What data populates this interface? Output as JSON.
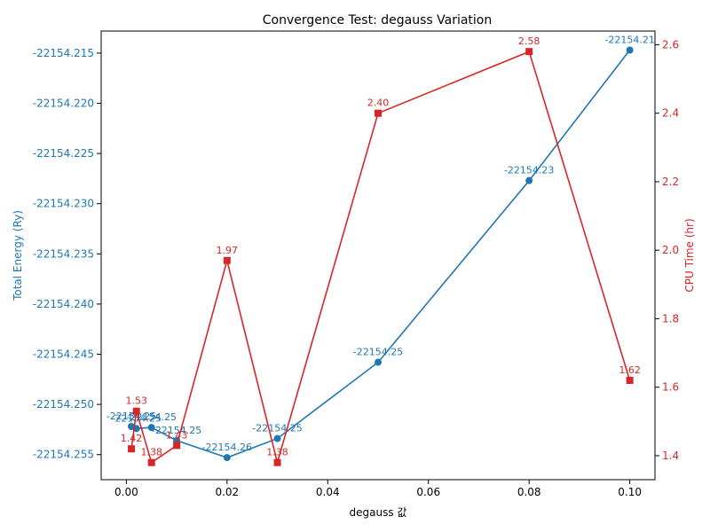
{
  "chart_data": {
    "type": "line",
    "title": "Convergence Test: degauss Variation",
    "xlabel": "degauss 값",
    "ylabel_left": "Total Energy (Ry)",
    "ylabel_right": "CPU Time (hr)",
    "xlim": [
      -0.005,
      0.105
    ],
    "ylim_left": [
      -22154.2575,
      -22154.2128
    ],
    "ylim_right": [
      1.33,
      2.64
    ],
    "x_ticks": [
      0.0,
      0.02,
      0.04,
      0.06,
      0.08,
      0.1
    ],
    "x_tick_labels": [
      "0.00",
      "0.02",
      "0.04",
      "0.06",
      "0.08",
      "0.10"
    ],
    "y_left_ticks": [
      -22154.215,
      -22154.22,
      -22154.225,
      -22154.23,
      -22154.235,
      -22154.24,
      -22154.245,
      -22154.25,
      -22154.255
    ],
    "y_left_tick_labels": [
      "-22154.215",
      "-22154.220",
      "-22154.225",
      "-22154.230",
      "-22154.235",
      "-22154.240",
      "-22154.245",
      "-22154.250",
      "-22154.255"
    ],
    "y_right_ticks": [
      1.4,
      1.6,
      1.8,
      2.0,
      2.2,
      2.4,
      2.6
    ],
    "y_right_tick_labels": [
      "1.4",
      "1.6",
      "1.8",
      "2.0",
      "2.2",
      "2.4",
      "2.6"
    ],
    "grid": false,
    "series": [
      {
        "axis": "left",
        "color": "#1f77b4",
        "marker": "circle",
        "x": [
          0.001,
          0.002,
          0.005,
          0.01,
          0.02,
          0.03,
          0.05,
          0.08,
          0.1
        ],
        "y": [
          -22154.2522,
          -22154.2524,
          -22154.2523,
          -22154.2536,
          -22154.2553,
          -22154.2534,
          -22154.2458,
          -22154.2277,
          -22154.2147
        ],
        "labels": [
          "-22154.25",
          "-22154.25",
          "-22154.25",
          "-22154.25",
          "-22154.26",
          "-22154.25",
          "-22154.25",
          "-22154.23",
          "-22154.21"
        ]
      },
      {
        "axis": "right",
        "color": "#d62728",
        "marker": "square",
        "x": [
          0.001,
          0.002,
          0.005,
          0.01,
          0.02,
          0.03,
          0.05,
          0.08,
          0.1
        ],
        "y": [
          1.42,
          1.53,
          1.38,
          1.43,
          1.97,
          1.38,
          2.4,
          2.58,
          1.62
        ],
        "labels": [
          "1.42",
          "1.53",
          "1.38",
          "1.43",
          "1.97",
          "1.38",
          "2.40",
          "2.58",
          "1.62"
        ]
      }
    ]
  }
}
